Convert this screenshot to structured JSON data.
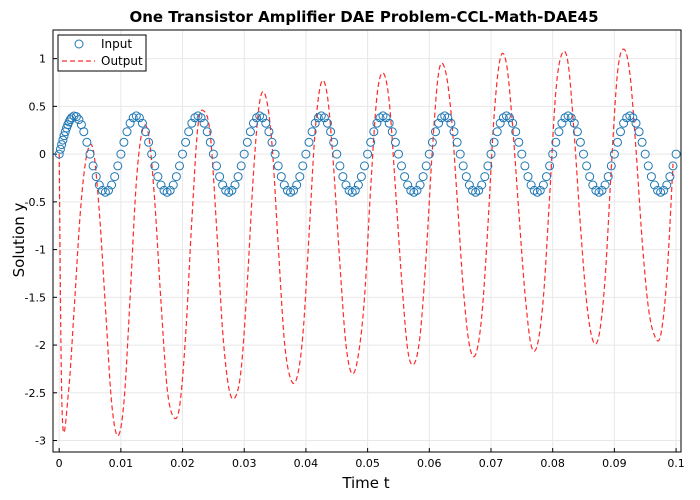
{
  "chart_data": {
    "type": "line",
    "title": "One Transistor Amplifier DAE Problem-CCL-Math-DAE45",
    "xlabel": "Time t",
    "ylabel": "Solution y",
    "xlim": [
      -0.001,
      0.1008
    ],
    "ylim": [
      -3.12,
      1.3
    ],
    "xticks": [
      0,
      0.01,
      0.02,
      0.03,
      0.04,
      0.05,
      0.06,
      0.07,
      0.08,
      0.09,
      0.1
    ],
    "xtick_labels": [
      "0",
      "0.01",
      "0.02",
      "0.03",
      "0.04",
      "0.05",
      "0.06",
      "0.07",
      "0.08",
      "0.09",
      "0.1"
    ],
    "yticks": [
      -3,
      -2.5,
      -2,
      -1.5,
      -1,
      -0.5,
      0,
      0.5,
      1
    ],
    "ytick_labels": [
      "-3",
      "-2.5",
      "-2",
      "-1.5",
      "-1",
      "-0.5",
      "0",
      "0.5",
      "1"
    ],
    "grid": true,
    "legend_position": "top-left",
    "colors": {
      "input": "#1f77b4",
      "output": "#ff2a2a"
    },
    "series": [
      {
        "name": "Input",
        "style": "circles",
        "amplitude": 0.4,
        "frequency": 100,
        "x": [
          0,
          0.0002,
          0.0004,
          0.0006,
          0.0008,
          0.001,
          0.0012,
          0.0014,
          0.0016,
          0.0018,
          0.002,
          0.0024,
          0.0028,
          0.0032,
          0.0036,
          0.004,
          0.0045,
          0.005,
          0.0055,
          0.006,
          0.0065,
          0.007,
          0.0075,
          0.008,
          0.0085,
          0.009,
          0.0095,
          0.01,
          0.0105,
          0.011,
          0.0115,
          0.012,
          0.0125,
          0.013,
          0.0135,
          0.014,
          0.0145,
          0.015,
          0.0155,
          0.016,
          0.0165,
          0.017,
          0.0175,
          0.018,
          0.0185,
          0.019,
          0.0195,
          0.02,
          0.0205,
          0.021,
          0.0215,
          0.022,
          0.0225,
          0.023,
          0.0235,
          0.024,
          0.0245,
          0.025,
          0.0255,
          0.026,
          0.0265,
          0.027,
          0.0275,
          0.028,
          0.0285,
          0.029,
          0.0295,
          0.03,
          0.0305,
          0.031,
          0.0315,
          0.032,
          0.0325,
          0.033,
          0.0335,
          0.034,
          0.0345,
          0.035,
          0.0355,
          0.036,
          0.0365,
          0.037,
          0.0375,
          0.038,
          0.0385,
          0.039,
          0.0395,
          0.04,
          0.0405,
          0.041,
          0.0415,
          0.042,
          0.0425,
          0.043,
          0.0435,
          0.044,
          0.0445,
          0.045,
          0.0455,
          0.046,
          0.0465,
          0.047,
          0.0475,
          0.048,
          0.0485,
          0.049,
          0.0495,
          0.05,
          0.0505,
          0.051,
          0.0515,
          0.052,
          0.0525,
          0.053,
          0.0535,
          0.054,
          0.0545,
          0.055,
          0.0555,
          0.056,
          0.0565,
          0.057,
          0.0575,
          0.058,
          0.0585,
          0.059,
          0.0595,
          0.06,
          0.0605,
          0.061,
          0.0615,
          0.062,
          0.0625,
          0.063,
          0.0635,
          0.064,
          0.0645,
          0.065,
          0.0655,
          0.066,
          0.0665,
          0.067,
          0.0675,
          0.068,
          0.0685,
          0.069,
          0.0695,
          0.07,
          0.0705,
          0.071,
          0.0715,
          0.072,
          0.0725,
          0.073,
          0.0735,
          0.074,
          0.0745,
          0.075,
          0.0755,
          0.076,
          0.0765,
          0.077,
          0.0775,
          0.078,
          0.0785,
          0.079,
          0.0795,
          0.08,
          0.0805,
          0.081,
          0.0815,
          0.082,
          0.0825,
          0.083,
          0.0835,
          0.084,
          0.0845,
          0.085,
          0.0855,
          0.086,
          0.0865,
          0.087,
          0.0875,
          0.088,
          0.0885,
          0.089,
          0.0895,
          0.09,
          0.0905,
          0.091,
          0.0915,
          0.092,
          0.0925,
          0.093,
          0.0935,
          0.094,
          0.0945,
          0.095,
          0.0955,
          0.096,
          0.0965,
          0.097,
          0.0975,
          0.098,
          0.0985,
          0.099,
          0.0995,
          0.1
        ]
      },
      {
        "name": "Output",
        "style": "dashed",
        "x": [
          0,
          0.0005,
          0.0015,
          0.0025,
          0.0035,
          0.0045,
          0.0055,
          0.0065,
          0.0075,
          0.0085,
          0.0095,
          0.0105,
          0.0115,
          0.0125,
          0.0135,
          0.0145,
          0.0155,
          0.0165,
          0.0175,
          0.0185,
          0.0195,
          0.0205,
          0.0215,
          0.0225,
          0.0235,
          0.0245,
          0.0255,
          0.0265,
          0.0275,
          0.0285,
          0.0295,
          0.0305,
          0.0315,
          0.0325,
          0.0335,
          0.0345,
          0.0355,
          0.0365,
          0.0375,
          0.0385,
          0.0395,
          0.0405,
          0.0415,
          0.0425,
          0.0435,
          0.0445,
          0.0455,
          0.0465,
          0.0475,
          0.0485,
          0.0495,
          0.0505,
          0.0515,
          0.0525,
          0.0535,
          0.0545,
          0.0555,
          0.0565,
          0.0575,
          0.0585,
          0.0595,
          0.0605,
          0.0615,
          0.0625,
          0.0635,
          0.0645,
          0.0655,
          0.0665,
          0.0675,
          0.0685,
          0.0695,
          0.0705,
          0.0715,
          0.0725,
          0.0735,
          0.0745,
          0.0755,
          0.0765,
          0.0775,
          0.0785,
          0.0795,
          0.0805,
          0.0815,
          0.0825,
          0.0835,
          0.0845,
          0.0855,
          0.0865,
          0.0875,
          0.0885,
          0.0895,
          0.0905,
          0.0915,
          0.0925,
          0.0935,
          0.0945,
          0.0955,
          0.0965,
          0.0975,
          0.0985,
          0.0995
        ],
        "y": [
          0,
          -2.75,
          -2.5,
          -1.55,
          -0.55,
          0,
          0.05,
          -0.6,
          -1.6,
          -2.6,
          -2.95,
          -2.6,
          -1.5,
          -0.3,
          0.25,
          0.2,
          -0.5,
          -1.55,
          -2.45,
          -2.75,
          -2.65,
          -1.9,
          -0.7,
          0.3,
          0.45,
          0.2,
          -0.75,
          -1.85,
          -2.45,
          -2.55,
          -2.25,
          -1.35,
          -0.2,
          0.55,
          0.6,
          0.1,
          -0.95,
          -1.95,
          -2.35,
          -2.35,
          -1.9,
          -0.85,
          0.25,
          0.75,
          0.6,
          -0.15,
          -1.15,
          -2.0,
          -2.3,
          -2.1,
          -1.5,
          -0.35,
          0.6,
          0.85,
          0.55,
          -0.35,
          -1.3,
          -2.05,
          -2.2,
          -1.9,
          -1.05,
          0.05,
          0.85,
          0.9,
          0.45,
          -0.45,
          -1.4,
          -2.0,
          -2.1,
          -1.7,
          -0.75,
          0.4,
          1.0,
          0.95,
          0.3,
          -0.6,
          -1.45,
          -2.0,
          -2.0,
          -1.5,
          -0.45,
          0.65,
          1.05,
          0.95,
          0.2,
          -0.75,
          -1.55,
          -1.95,
          -1.9,
          -1.3,
          -0.15,
          0.85,
          1.1,
          0.85,
          0.05,
          -0.9,
          -1.6,
          -1.9,
          -1.9,
          -1.3,
          -0.1
        ]
      }
    ]
  }
}
